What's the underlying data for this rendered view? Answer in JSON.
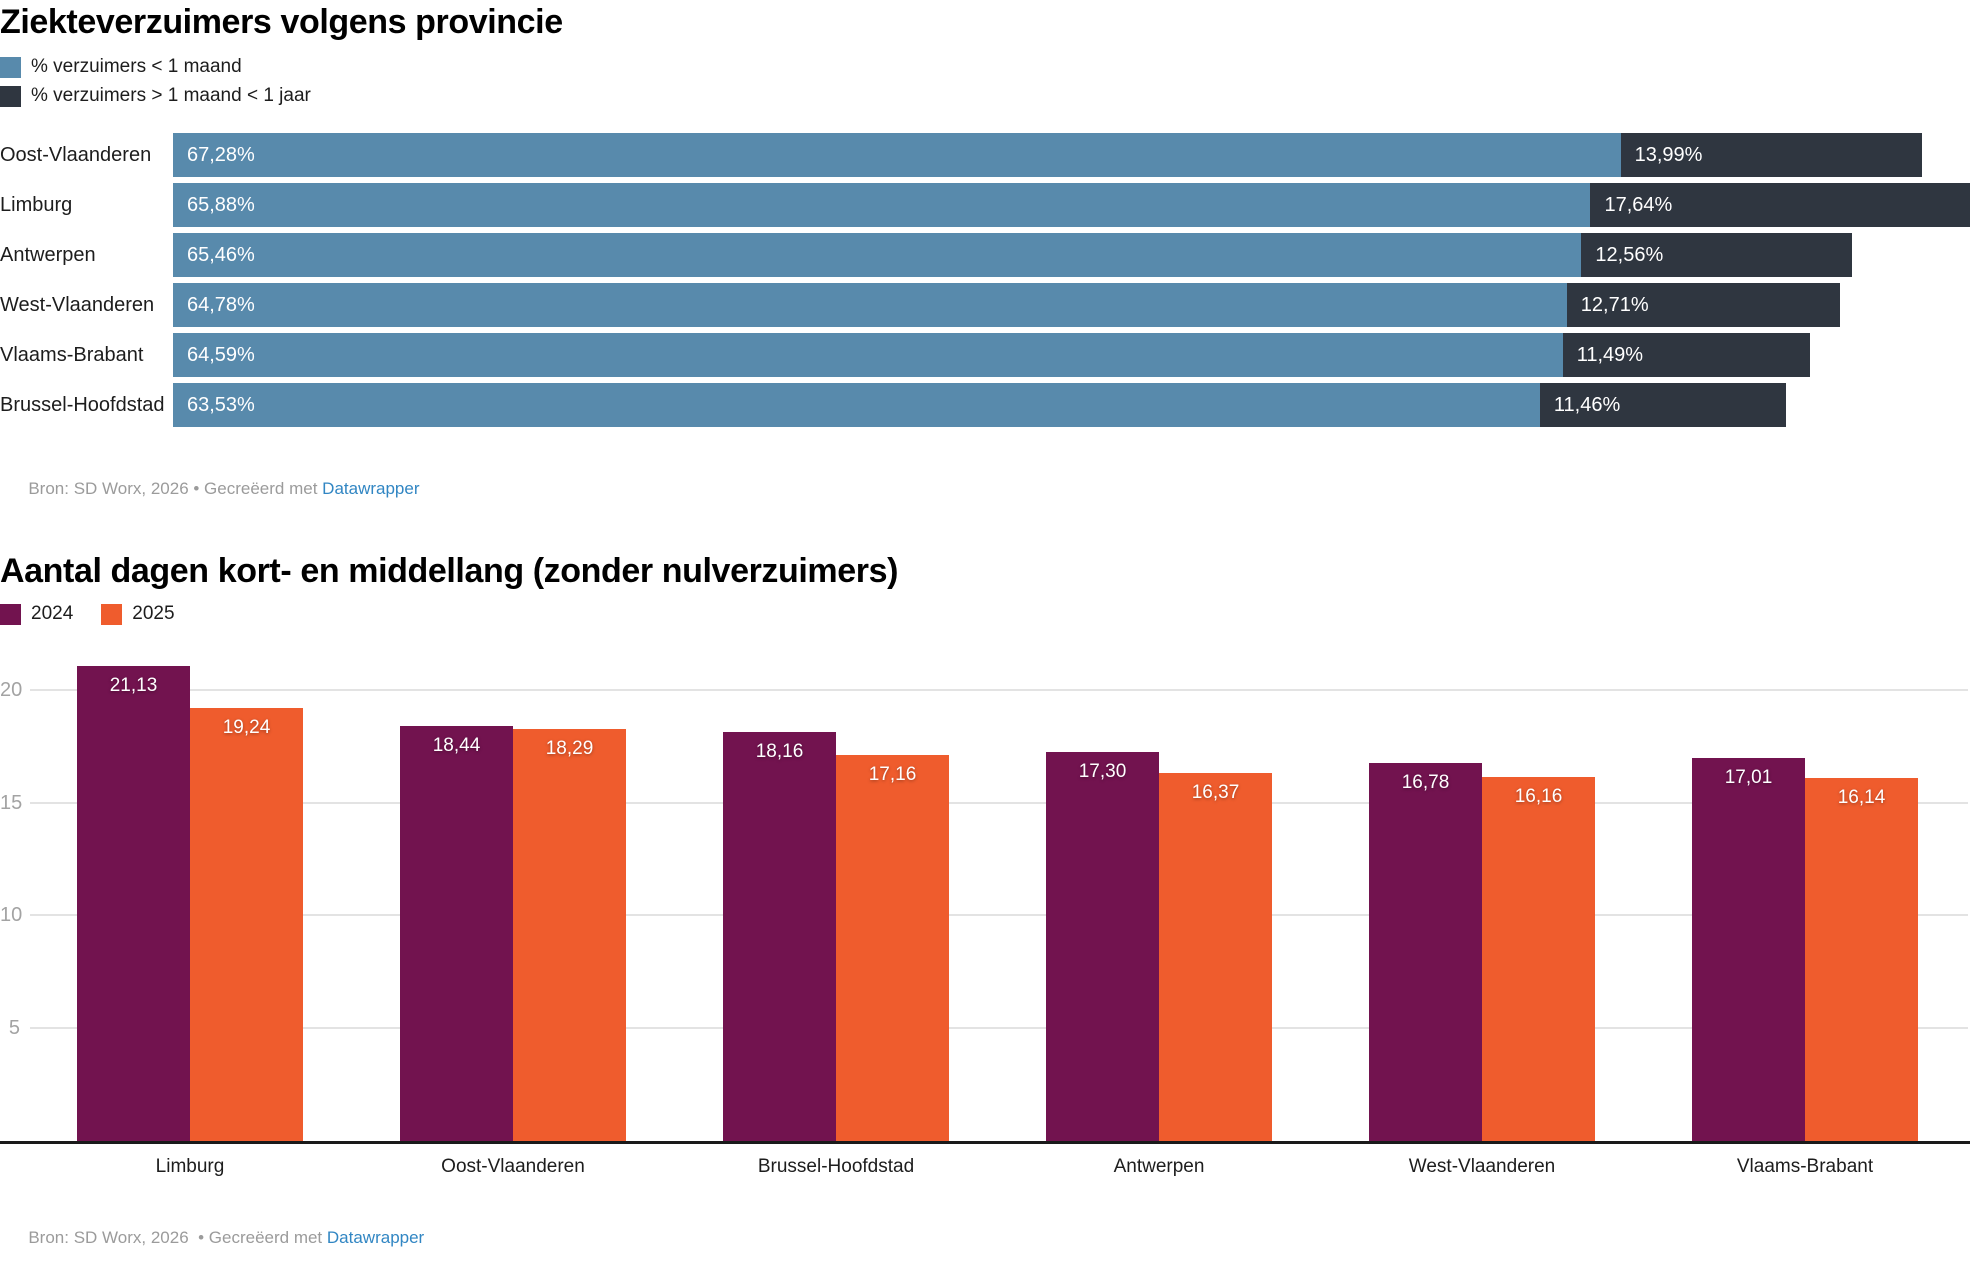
{
  "colors": {
    "blue": "#588aac",
    "dark": "#2f3640",
    "purple": "#72134f",
    "orange": "#ef5c2d",
    "link": "#3186c3"
  },
  "chart_data": [
    {
      "type": "bar",
      "orientation": "horizontal",
      "stacked": true,
      "title": "Ziekteverzuimers volgens provincie",
      "legend_position": "top",
      "grid": false,
      "categories": [
        "Oost-Vlaanderen",
        "Limburg",
        "Antwerpen",
        "West-Vlaanderen",
        "Vlaams-Brabant",
        "Brussel-Hoofdstad"
      ],
      "series": [
        {
          "name": "% verzuimers < 1 maand",
          "color": "#588aac",
          "values": [
            67.28,
            65.88,
            65.46,
            64.78,
            64.59,
            63.53
          ],
          "labels": [
            "67,28%",
            "65,88%",
            "65,46%",
            "64,78%",
            "64,59%",
            "63,53%"
          ]
        },
        {
          "name": "% verzuimers > 1 maand < 1 jaar",
          "color": "#2f3640",
          "values": [
            13.99,
            17.64,
            12.56,
            12.71,
            11.49,
            11.46
          ],
          "labels": [
            "13,99%",
            "17,64%",
            "12,56%",
            "12,71%",
            "11,49%",
            "11,46%"
          ]
        }
      ],
      "xlim": [
        0,
        83.52
      ],
      "source": {
        "prefix": "Bron: SD Worx, 2026 • Gecreëerd met ",
        "link": "Datawrapper"
      }
    },
    {
      "type": "bar",
      "orientation": "vertical",
      "grouped": true,
      "title": "Aantal dagen kort- en middellang (zonder nulverzuimers)",
      "legend_position": "top",
      "grid": true,
      "categories": [
        "Limburg",
        "Oost-Vlaanderen",
        "Brussel-Hoofdstad",
        "Antwerpen",
        "West-Vlaanderen",
        "Vlaams-Brabant"
      ],
      "series": [
        {
          "name": "2024",
          "color": "#72134f",
          "values": [
            21.13,
            18.44,
            18.16,
            17.3,
            16.78,
            17.01
          ],
          "labels": [
            "21,13",
            "18,44",
            "18,16",
            "17,30",
            "16,78",
            "17,01"
          ]
        },
        {
          "name": "2025",
          "color": "#ef5c2d",
          "values": [
            19.24,
            18.29,
            17.16,
            16.37,
            16.16,
            16.14
          ],
          "labels": [
            "19,24",
            "18,29",
            "17,16",
            "16,37",
            "16,16",
            "16,14"
          ]
        }
      ],
      "yticks": [
        5,
        10,
        15,
        20
      ],
      "ylim": [
        0,
        21.7
      ],
      "xlabel": "",
      "ylabel": "",
      "source": {
        "prefix": "Bron: SD Worx, 2026  • Gecreëerd met ",
        "link": "Datawrapper"
      }
    }
  ]
}
